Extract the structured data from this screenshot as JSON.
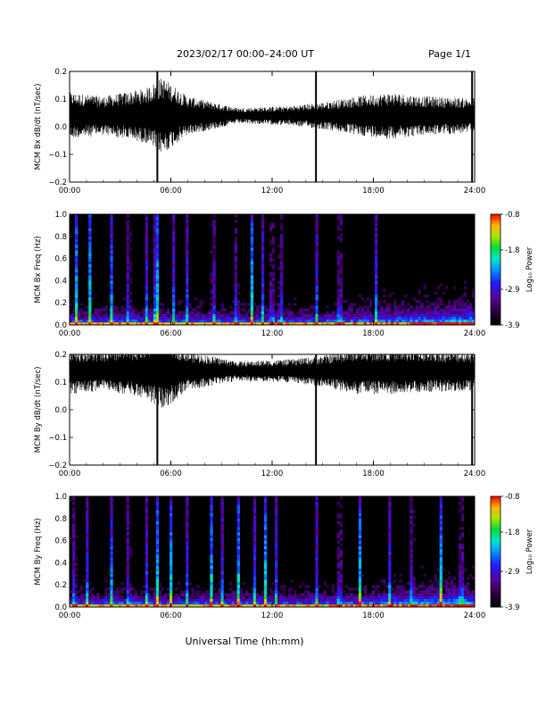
{
  "header": {
    "title": "2023/02/17  00:00–24:00 UT",
    "page": "Page 1/1"
  },
  "xlabel": "Universal Time (hh:mm)",
  "colors": {
    "trace": "#000000",
    "background": "#ffffff",
    "spectrogram_bg": "#000000"
  },
  "colorbar": {
    "label": "Log₁₀ Power",
    "ticks": [
      "-0.8",
      "-1.8",
      "-2.9",
      "-3.9"
    ],
    "tick_values": [
      -0.8,
      -1.8,
      -2.9,
      -3.9
    ],
    "range": [
      -3.9,
      -0.8
    ],
    "colormap": "rainbow"
  },
  "chart_data": [
    {
      "type": "line",
      "ylabel": "MCM Bx dB/dt (nT/sec)",
      "xticks": [
        "00:00",
        "06:00",
        "12:00",
        "18:00",
        "24:00"
      ],
      "xlim": [
        0,
        24
      ],
      "ylim": [
        -0.2,
        0.2
      ],
      "yticks": [
        "0.2",
        "0.1",
        "0.0",
        "−0.1",
        "−0.2"
      ],
      "ytick_values": [
        0.2,
        0.1,
        0.0,
        -0.1,
        -0.2
      ],
      "baseline": 0.04,
      "noise_envelope": {
        "hours": [
          0,
          2,
          4.5,
          5.5,
          7,
          10,
          13,
          15,
          17,
          19,
          21,
          24
        ],
        "amplitude": [
          0.06,
          0.05,
          0.07,
          0.1,
          0.05,
          0.02,
          0.025,
          0.035,
          0.05,
          0.06,
          0.05,
          0.045
        ]
      },
      "spikes": [
        {
          "hour": 5.2,
          "min": -0.21,
          "max": 0.2
        },
        {
          "hour": 14.6,
          "min": -0.21,
          "max": 0.2
        },
        {
          "hour": 23.85,
          "min": -0.21,
          "max": 0.2
        }
      ]
    },
    {
      "type": "heatmap",
      "ylabel": "MCM Bx Freq (Hz)",
      "xticks": [
        "00:00",
        "06:00",
        "12:00",
        "18:00",
        "24:00"
      ],
      "xlim": [
        0,
        24
      ],
      "ylim": [
        0,
        1.0
      ],
      "yticks": [
        "1.0",
        "0.8",
        "0.6",
        "0.4",
        "0.2",
        "0.0"
      ],
      "ytick_values": [
        1.0,
        0.8,
        0.6,
        0.4,
        0.2,
        0.0
      ],
      "zlim": [
        -3.9,
        -0.8
      ],
      "bright_lines_hours": [
        0.4,
        1.2,
        2.5,
        3.5,
        4.6,
        5.0,
        5.2,
        6.2,
        7.0,
        8.5,
        9.9,
        10.8,
        11.4,
        12.0,
        12.5,
        14.6,
        16.0,
        18.2
      ]
    },
    {
      "type": "line",
      "ylabel": "MCM By dB/dt (nT/sec)",
      "xticks": [
        "00:00",
        "06:00",
        "12:00",
        "18:00",
        "24:00"
      ],
      "xlim": [
        0,
        24
      ],
      "ylim": [
        -0.2,
        0.2
      ],
      "yticks": [
        "0.2",
        "0.1",
        "0.0",
        "−0.1",
        "−0.2"
      ],
      "ytick_values": [
        0.2,
        0.1,
        0.0,
        -0.1,
        -0.2
      ],
      "baseline": 0.14,
      "noise_envelope": {
        "hours": [
          0,
          2,
          4.5,
          5.5,
          7,
          10,
          13,
          15,
          17,
          19,
          21,
          24
        ],
        "amplitude": [
          0.06,
          0.05,
          0.07,
          0.1,
          0.05,
          0.025,
          0.03,
          0.04,
          0.06,
          0.06,
          0.055,
          0.05
        ]
      },
      "spikes": [
        {
          "hour": 5.2,
          "min": -0.21,
          "max": 0.2
        },
        {
          "hour": 14.6,
          "min": -0.21,
          "max": 0.2
        },
        {
          "hour": 23.85,
          "min": -0.21,
          "max": 0.2
        }
      ]
    },
    {
      "type": "heatmap",
      "ylabel": "MCM By Freq (Hz)",
      "xticks": [
        "00:00",
        "06:00",
        "12:00",
        "18:00",
        "24:00"
      ],
      "xlim": [
        0,
        24
      ],
      "ylim": [
        0,
        1.0
      ],
      "yticks": [
        "1.0",
        "0.8",
        "0.6",
        "0.4",
        "0.2",
        "0.0"
      ],
      "ytick_values": [
        1.0,
        0.8,
        0.6,
        0.4,
        0.2,
        0.0
      ],
      "zlim": [
        -3.9,
        -0.8
      ],
      "bright_lines_hours": [
        0.3,
        1.0,
        2.5,
        3.5,
        4.6,
        5.2,
        6.0,
        7.0,
        8.4,
        9.0,
        10.0,
        11.0,
        11.6,
        12.2,
        14.6,
        16.0,
        17.2,
        19.0,
        20.3,
        22.0,
        23.2
      ]
    }
  ]
}
